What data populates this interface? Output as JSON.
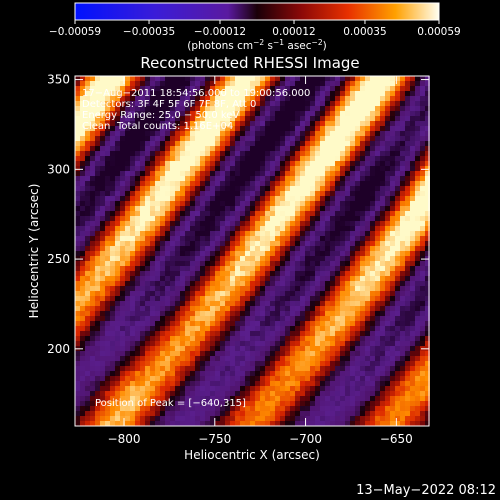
{
  "chart_data": {
    "type": "heatmap",
    "title": "Reconstructed RHESSI Image",
    "xlabel": "Heliocentric X (arcsec)",
    "ylabel": "Heliocentric Y (arcsec)",
    "xlim": [
      -827,
      -632
    ],
    "ylim": [
      157,
      352
    ],
    "x_ticks": [
      {
        "value": -800,
        "label": "−800"
      },
      {
        "value": -750,
        "label": "−750"
      },
      {
        "value": -700,
        "label": "−700"
      },
      {
        "value": -650,
        "label": "−650"
      }
    ],
    "y_ticks": [
      {
        "value": 200,
        "label": "200"
      },
      {
        "value": 250,
        "label": "250"
      },
      {
        "value": 300,
        "label": "300"
      },
      {
        "value": 350,
        "label": "350"
      }
    ],
    "colorbar": {
      "range": [
        -0.00059,
        0.00059
      ],
      "ticks": [
        {
          "value": -0.00059,
          "label": "−0.00059"
        },
        {
          "value": -0.00035,
          "label": "−0.00035"
        },
        {
          "value": -0.00012,
          "label": "−0.00012"
        },
        {
          "value": 0.00012,
          "label": "0.00012"
        },
        {
          "value": 0.00035,
          "label": "0.00035"
        },
        {
          "value": 0.00059,
          "label": "0.00059"
        }
      ],
      "label_parts": [
        "(photons cm",
        "−2",
        " s",
        "−1",
        " asec",
        "−2",
        ")"
      ]
    },
    "annotations": {
      "time": "17−Aug−2011 18:54:56.000 to 19:00:56.000",
      "detectors": "Detectors: 3F 4F 5F 6F 7F 8F, Att 0",
      "energy": "Energy Range: 25.0 − 50.0 keV",
      "clean": "Clean",
      "counts": "Total counts: 1.16E+04",
      "peak": "Position of Peak = [−640,315]"
    },
    "peak": {
      "x": -640,
      "y": 315
    },
    "footer_date": "13−May−2022 08:12"
  }
}
